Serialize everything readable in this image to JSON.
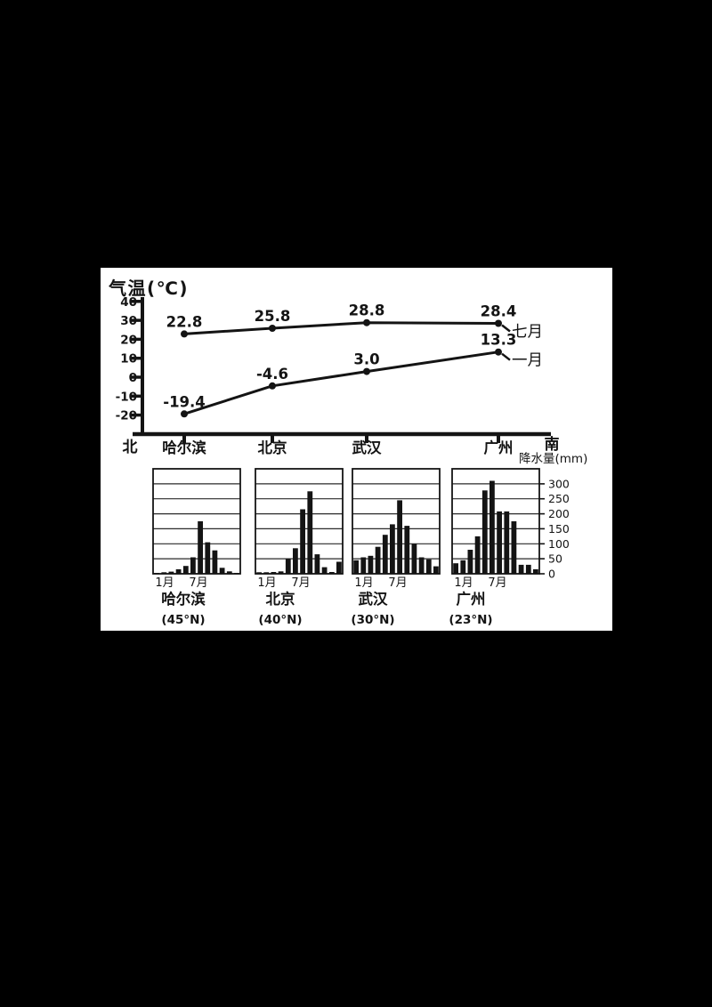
{
  "colors": {
    "background": "#000000",
    "panel": "#ffffff",
    "ink": "#141414"
  },
  "chart_data": [
    {
      "id": "temperature-by-city",
      "type": "line",
      "title": "气温(℃)",
      "yticks": [
        40,
        30,
        20,
        10,
        0,
        -10,
        -20
      ],
      "categories": [
        "哈尔滨",
        "北京",
        "武汉",
        "广州"
      ],
      "axis_end_labels": {
        "left": "北",
        "right": "南"
      },
      "legend_position": "right-of-last-point",
      "grid": false,
      "series": [
        {
          "name": "七月",
          "values": [
            22.8,
            25.8,
            28.8,
            28.4
          ],
          "labels": [
            "22.8",
            "25.8",
            "28.8",
            "28.4"
          ]
        },
        {
          "name": "一月",
          "values": [
            -19.4,
            -4.6,
            3.0,
            13.3
          ],
          "labels": [
            "-19.4",
            "-4.6",
            "3.0",
            "13.3"
          ]
        }
      ]
    },
    {
      "id": "monthly-precipitation-by-city",
      "type": "bar",
      "ylabel": "降水量(mm)",
      "yticks": [
        300,
        250,
        200,
        150,
        100,
        50,
        0
      ],
      "ymax": 350,
      "grid": true,
      "month_axis_labels": [
        "1月",
        "7月"
      ],
      "cities": [
        {
          "name": "哈尔滨",
          "latitude": "(45°N)",
          "monthly_mm": [
            3,
            5,
            7,
            15,
            26,
            55,
            175,
            105,
            78,
            20,
            8,
            3
          ]
        },
        {
          "name": "北京",
          "latitude": "(40°N)",
          "monthly_mm": [
            5,
            5,
            6,
            8,
            50,
            85,
            215,
            275,
            65,
            22,
            6,
            40
          ]
        },
        {
          "name": "武汉",
          "latitude": "(30°N)",
          "monthly_mm": [
            45,
            55,
            60,
            90,
            130,
            165,
            245,
            160,
            100,
            55,
            48,
            25
          ]
        },
        {
          "name": "广州",
          "latitude": "(23°N)",
          "monthly_mm": [
            35,
            45,
            80,
            125,
            278,
            310,
            208,
            208,
            175,
            30,
            30,
            15
          ]
        }
      ]
    }
  ]
}
